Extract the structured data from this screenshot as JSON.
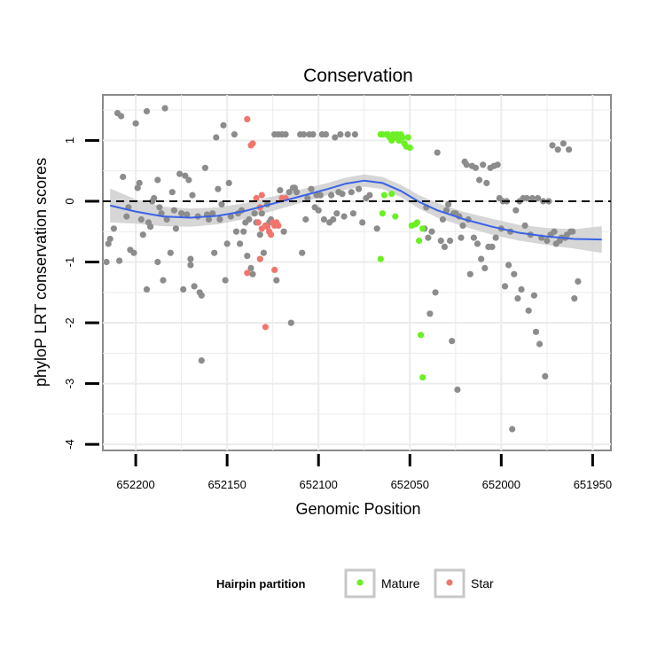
{
  "chart_data": {
    "type": "scatter",
    "title": "Conservation",
    "xlabel": "Genomic Position",
    "ylabel": "phyloP LRT conservation scores",
    "x_reversed": true,
    "xlim": [
      652218,
      651940
    ],
    "ylim": [
      -4.1,
      1.75
    ],
    "x_ticks": [
      652200,
      652150,
      652100,
      652050,
      652000,
      651950
    ],
    "y_ticks": [
      -4,
      -3,
      -2,
      -1,
      0,
      1
    ],
    "reference_line": {
      "y": 0,
      "style": "dashed"
    },
    "legend": {
      "title": "Hairpin partition",
      "placement": "bottom",
      "entries": [
        {
          "name": "Mature",
          "color": "#6cf024"
        },
        {
          "name": "Star",
          "color": "#f0766d"
        }
      ]
    },
    "colors": {
      "Other": "#8c8c8c",
      "Mature": "#6cf024",
      "Star": "#f0766d",
      "smooth": "#3a62e6",
      "band": "#cfcfcf",
      "panel": "#ececec"
    },
    "series": [
      {
        "name": "Other",
        "points": [
          [
            652216,
            -1.0
          ],
          [
            652215,
            -0.7
          ],
          [
            652214,
            -0.62
          ],
          [
            652212,
            -0.45
          ],
          [
            652210,
            1.45
          ],
          [
            652209,
            -0.98
          ],
          [
            652208,
            1.4
          ],
          [
            652207,
            0.4
          ],
          [
            652205,
            -0.25
          ],
          [
            652204,
            -0.1
          ],
          [
            652203,
            -0.8
          ],
          [
            652201,
            -0.85
          ],
          [
            652200,
            1.28
          ],
          [
            652199,
            0.22
          ],
          [
            652198,
            0.3
          ],
          [
            652197,
            -0.3
          ],
          [
            652196,
            -0.55
          ],
          [
            652194,
            1.48
          ],
          [
            652194,
            -1.45
          ],
          [
            652193,
            -0.35
          ],
          [
            652192,
            -0.42
          ],
          [
            652191,
            0.0
          ],
          [
            652190,
            0.05
          ],
          [
            652188,
            0.35
          ],
          [
            652188,
            -1.0
          ],
          [
            652187,
            -0.1
          ],
          [
            652186,
            -0.2
          ],
          [
            652185,
            -1.3
          ],
          [
            652184,
            1.53
          ],
          [
            652183,
            -0.3
          ],
          [
            652181,
            -0.85
          ],
          [
            652180,
            0.15
          ],
          [
            652179,
            -0.15
          ],
          [
            652178,
            -0.45
          ],
          [
            652176,
            0.45
          ],
          [
            652175,
            -0.2
          ],
          [
            652174,
            -1.45
          ],
          [
            652173,
            0.42
          ],
          [
            652172,
            -0.22
          ],
          [
            652171,
            0.35
          ],
          [
            652170,
            -1.05
          ],
          [
            652170,
            -0.95
          ],
          [
            652169,
            0.1
          ],
          [
            652168,
            -1.4
          ],
          [
            652166,
            -0.25
          ],
          [
            652165,
            -1.5
          ],
          [
            652164,
            -1.55
          ],
          [
            652164,
            -2.62
          ],
          [
            652162,
            0.55
          ],
          [
            652161,
            -0.22
          ],
          [
            652160,
            -0.3
          ],
          [
            652158,
            -0.2
          ],
          [
            652157,
            -0.85
          ],
          [
            652156,
            1.05
          ],
          [
            652155,
            0.2
          ],
          [
            652154,
            -0.3
          ],
          [
            652153,
            -0.05
          ],
          [
            652152,
            1.25
          ],
          [
            652151,
            -1.3
          ],
          [
            652150,
            -0.7
          ],
          [
            652149,
            0.3
          ],
          [
            652148,
            -0.25
          ],
          [
            652146,
            1.1
          ],
          [
            652145,
            -0.5
          ],
          [
            652144,
            -0.2
          ],
          [
            652143,
            -0.7
          ],
          [
            652142,
            -0.15
          ],
          [
            652141,
            -0.5
          ],
          [
            652140,
            -0.35
          ],
          [
            652139,
            -0.9
          ],
          [
            652138,
            -0.3
          ],
          [
            652137,
            -1.1
          ],
          [
            652136,
            -1.2
          ],
          [
            652135,
            -0.2
          ],
          [
            652134,
            -0.35
          ],
          [
            652132,
            -0.55
          ],
          [
            652131,
            -0.2
          ],
          [
            652130,
            -0.85
          ],
          [
            652128,
            -0.05
          ],
          [
            652127,
            -0.35
          ],
          [
            652126,
            -0.3
          ],
          [
            652124,
            1.1
          ],
          [
            652123,
            -1.3
          ],
          [
            652122,
            1.1
          ],
          [
            652121,
            0.18
          ],
          [
            652120,
            1.1
          ],
          [
            652119,
            -0.5
          ],
          [
            652118,
            1.1
          ],
          [
            652116,
            0.15
          ],
          [
            652115,
            -2.0
          ],
          [
            652114,
            0.22
          ],
          [
            652113,
            0.22
          ],
          [
            652112,
            0.15
          ],
          [
            652110,
            1.1
          ],
          [
            652109,
            -0.85
          ],
          [
            652108,
            1.1
          ],
          [
            652107,
            -0.3
          ],
          [
            652106,
            0.05
          ],
          [
            652105,
            1.1
          ],
          [
            652104,
            0.2
          ],
          [
            652103,
            1.1
          ],
          [
            652102,
            -0.1
          ],
          [
            652101,
            0.1
          ],
          [
            652100,
            -0.15
          ],
          [
            652099,
            0.1
          ],
          [
            652098,
            1.1
          ],
          [
            652097,
            -0.3
          ],
          [
            652096,
            1.1
          ],
          [
            652094,
            -0.35
          ],
          [
            652093,
            0.1
          ],
          [
            652092,
            -0.3
          ],
          [
            652091,
            1.05
          ],
          [
            652090,
            -0.2
          ],
          [
            652089,
            0.15
          ],
          [
            652088,
            1.1
          ],
          [
            652087,
            0.12
          ],
          [
            652086,
            -0.25
          ],
          [
            652084,
            1.1
          ],
          [
            652082,
            0.15
          ],
          [
            652081,
            -0.2
          ],
          [
            652080,
            1.1
          ],
          [
            652078,
            0.2
          ],
          [
            652076,
            -0.35
          ],
          [
            652074,
            0.05
          ],
          [
            652072,
            0.1
          ],
          [
            652068,
            -0.45
          ],
          [
            652042,
            -0.45
          ],
          [
            652041,
            -0.1
          ],
          [
            652040,
            -0.6
          ],
          [
            652039,
            -1.85
          ],
          [
            652038,
            -0.5
          ],
          [
            652036,
            -1.5
          ],
          [
            652035,
            0.8
          ],
          [
            652033,
            -0.65
          ],
          [
            652032,
            -0.3
          ],
          [
            652031,
            -0.75
          ],
          [
            652030,
            -0.15
          ],
          [
            652029,
            -0.05
          ],
          [
            652028,
            -0.65
          ],
          [
            652027,
            -2.3
          ],
          [
            652026,
            -0.2
          ],
          [
            652025,
            -0.2
          ],
          [
            652024,
            -3.1
          ],
          [
            652023,
            -0.25
          ],
          [
            652022,
            -0.6
          ],
          [
            652021,
            -0.4
          ],
          [
            652020,
            0.65
          ],
          [
            652019,
            0.6
          ],
          [
            652018,
            -0.3
          ],
          [
            652017,
            -1.2
          ],
          [
            652016,
            0.58
          ],
          [
            652015,
            -0.6
          ],
          [
            652014,
            0.55
          ],
          [
            652013,
            -0.7
          ],
          [
            652012,
            0.35
          ],
          [
            652011,
            -0.95
          ],
          [
            652010,
            0.6
          ],
          [
            652009,
            -1.1
          ],
          [
            652008,
            0.3
          ],
          [
            652007,
            -0.75
          ],
          [
            652006,
            0.55
          ],
          [
            652005,
            -0.75
          ],
          [
            652004,
            0.58
          ],
          [
            652003,
            -0.6
          ],
          [
            652002,
            0.6
          ],
          [
            652001,
            0.05
          ],
          [
            652000,
            -0.45
          ],
          [
            651999,
            0.0
          ],
          [
            651998,
            -1.4
          ],
          [
            651997,
            0.0
          ],
          [
            651996,
            -1.05
          ],
          [
            651995,
            -0.5
          ],
          [
            651994,
            -3.75
          ],
          [
            651993,
            -1.2
          ],
          [
            651992,
            -0.15
          ],
          [
            651991,
            -1.6
          ],
          [
            651990,
            0.0
          ],
          [
            651989,
            -1.45
          ],
          [
            651988,
            0.05
          ],
          [
            651987,
            -0.4
          ],
          [
            651986,
            0.05
          ],
          [
            651985,
            -1.8
          ],
          [
            651984,
            -0.55
          ],
          [
            651983,
            0.05
          ],
          [
            651982,
            -1.55
          ],
          [
            651981,
            -2.15
          ],
          [
            651980,
            0.05
          ],
          [
            651979,
            -2.35
          ],
          [
            651978,
            -0.6
          ],
          [
            651977,
            0.0
          ],
          [
            651976,
            -2.88
          ],
          [
            651975,
            -0.65
          ],
          [
            651974,
            0.0
          ],
          [
            651973,
            -0.55
          ],
          [
            651972,
            0.92
          ],
          [
            651971,
            -0.5
          ],
          [
            651970,
            -0.7
          ],
          [
            651969,
            0.85
          ],
          [
            651968,
            -0.65
          ],
          [
            651967,
            -0.6
          ],
          [
            651966,
            0.95
          ],
          [
            651965,
            -0.6
          ],
          [
            651964,
            -0.55
          ],
          [
            651963,
            0.85
          ],
          [
            651962,
            -0.5
          ],
          [
            651961,
            -0.5
          ],
          [
            651960,
            -1.6
          ],
          [
            651958,
            -1.32
          ]
        ]
      },
      {
        "name": "Mature",
        "points": [
          [
            652066,
            1.1
          ],
          [
            652065,
            1.1
          ],
          [
            652063,
            1.1
          ],
          [
            652062,
            1.1
          ],
          [
            652061,
            1.05
          ],
          [
            652060,
            1.0
          ],
          [
            652059,
            1.1
          ],
          [
            652058,
            1.05
          ],
          [
            652057,
            1.1
          ],
          [
            652056,
            1.0
          ],
          [
            652055,
            1.1
          ],
          [
            652054,
            1.05
          ],
          [
            652053,
            0.95
          ],
          [
            652052,
            0.9
          ],
          [
            652051,
            1.05
          ],
          [
            652050,
            0.88
          ],
          [
            652066,
            -0.95
          ],
          [
            652065,
            -0.2
          ],
          [
            652064,
            0.1
          ],
          [
            652060,
            0.12
          ],
          [
            652058,
            -0.25
          ],
          [
            652049,
            -0.4
          ],
          [
            652047,
            -0.38
          ],
          [
            652046,
            -0.35
          ],
          [
            652045,
            -0.65
          ],
          [
            652044,
            -2.2
          ],
          [
            652043,
            -2.9
          ],
          [
            652043,
            -0.45
          ]
        ]
      },
      {
        "name": "Star",
        "points": [
          [
            652139,
            1.35
          ],
          [
            652137,
            0.92
          ],
          [
            652136,
            0.95
          ],
          [
            652134,
            0.05
          ],
          [
            652133,
            -0.35
          ],
          [
            652132,
            -0.1
          ],
          [
            652131,
            -0.45
          ],
          [
            652129,
            -0.4
          ],
          [
            652128,
            -0.42
          ],
          [
            652127,
            -0.5
          ],
          [
            652126,
            -0.55
          ],
          [
            652125,
            -0.35
          ],
          [
            652124,
            -0.4
          ],
          [
            652123,
            -0.35
          ],
          [
            652122,
            -0.4
          ],
          [
            652120,
            0.05
          ],
          [
            652139,
            -1.18
          ],
          [
            652132,
            -0.95
          ],
          [
            652129,
            -2.07
          ],
          [
            652124,
            -1.13
          ],
          [
            652131,
            0.1
          ],
          [
            652118,
            0.05
          ]
        ]
      }
    ],
    "smooth": {
      "x": [
        652214,
        652200,
        652185,
        652170,
        652155,
        652140,
        652125,
        652110,
        652095,
        652085,
        652075,
        652065,
        652055,
        652045,
        652035,
        652020,
        652005,
        651990,
        651975,
        651960,
        651945
      ],
      "y": [
        -0.07,
        -0.17,
        -0.25,
        -0.27,
        -0.24,
        -0.16,
        -0.04,
        0.08,
        0.2,
        0.29,
        0.34,
        0.3,
        0.17,
        -0.01,
        -0.15,
        -0.3,
        -0.42,
        -0.52,
        -0.58,
        -0.62,
        -0.63
      ],
      "se": [
        0.28,
        0.2,
        0.16,
        0.15,
        0.14,
        0.13,
        0.12,
        0.11,
        0.1,
        0.1,
        0.1,
        0.1,
        0.1,
        0.11,
        0.12,
        0.12,
        0.13,
        0.13,
        0.14,
        0.16,
        0.22
      ]
    }
  }
}
